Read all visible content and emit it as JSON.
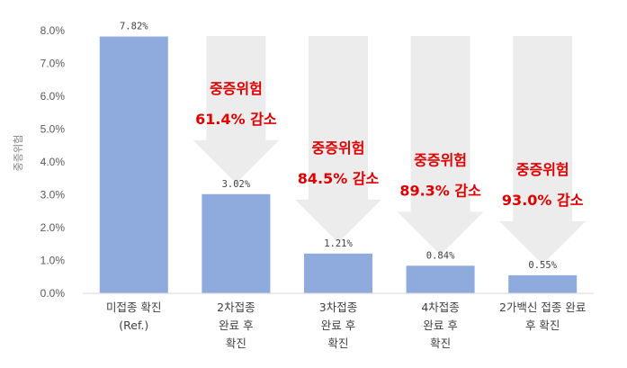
{
  "chart_data": {
    "type": "bar",
    "title": "",
    "xlabel": "",
    "ylabel": "중증위험",
    "ylim": [
      0,
      8
    ],
    "yticks": [
      "0.0%",
      "1.0%",
      "2.0%",
      "3.0%",
      "4.0%",
      "5.0%",
      "6.0%",
      "7.0%",
      "8.0%"
    ],
    "grid": false,
    "categories": [
      [
        "미접종 확진",
        "(Ref.)"
      ],
      [
        "2차접종",
        "완료 후",
        "확진"
      ],
      [
        "3차접종",
        "완료 후",
        "확진"
      ],
      [
        "4차접종",
        "완료 후",
        "확진"
      ],
      [
        "2가백신 접종 완료",
        "후 확진"
      ]
    ],
    "values": [
      7.82,
      3.02,
      1.21,
      0.84,
      0.55
    ],
    "data_labels": [
      "7.82%",
      "3.02%",
      "1.21%",
      "0.84%",
      "0.55%"
    ],
    "annotations": [
      {
        "category_index": 1,
        "lines": [
          "중증위험",
          "61.4% 감소"
        ]
      },
      {
        "category_index": 2,
        "lines": [
          "중증위험",
          "84.5% 감소"
        ]
      },
      {
        "category_index": 3,
        "lines": [
          "중증위험",
          "89.3% 감소"
        ]
      },
      {
        "category_index": 4,
        "lines": [
          "중증위험",
          "93.0% 감소"
        ]
      }
    ],
    "colors": {
      "bar": "#8faadc",
      "arrow": "#ececec",
      "annotation": "#e00000",
      "axis": "#d9d9d9"
    }
  }
}
